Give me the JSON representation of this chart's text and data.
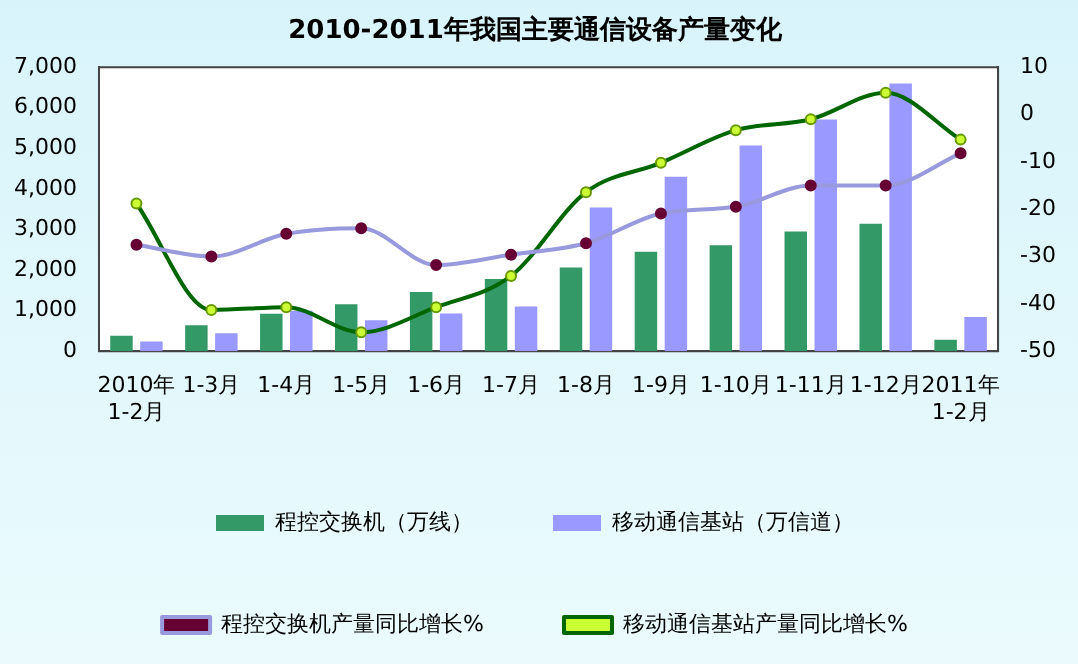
{
  "chart_data": {
    "type": "bar",
    "title": "2010-2011年我国主要通信设备产量变化",
    "categories": [
      "2010年\n1-2月",
      "1-3月",
      "1-4月",
      "1-5月",
      "1-6月",
      "1-7月",
      "1-8月",
      "1-9月",
      "1-10月",
      "1-11月",
      "1-12月",
      "2011年\n1-2月"
    ],
    "series": [
      {
        "name": "程控交换机（万线）",
        "color": "#339966",
        "values": [
          380,
          640,
          925,
          1160,
          1460,
          1780,
          2060,
          2450,
          2610,
          2950,
          3140,
          280
        ]
      },
      {
        "name": "移动通信基站（万信道）",
        "color": "#9999ff",
        "values": [
          240,
          440,
          1000,
          760,
          930,
          1100,
          3540,
          4300,
          5070,
          5710,
          6600,
          840
        ]
      },
      {
        "name": "程控交换机产量同比增长%",
        "type": "line",
        "axis": "y2",
        "color": "#9999dd",
        "values": [
          -27.5,
          -30,
          -25.2,
          -24,
          -31.8,
          -29.6,
          -27.2,
          -20.9,
          -19.5,
          -15,
          -15,
          -8.2
        ]
      },
      {
        "name": "移动通信基站产量同比增长%",
        "type": "line",
        "axis": "y2",
        "color": "#006600",
        "values": [
          -18.8,
          -41.3,
          -40.7,
          -46,
          -40.7,
          -34.1,
          -16.4,
          -10.2,
          -3.3,
          -1,
          4.6,
          -5.3
        ]
      }
    ],
    "ylim": [
      0,
      7000
    ],
    "yticks": [
      0,
      {
        "value": 1000,
        "label": "1,000"
      },
      {
        "value": 2000,
        "label": "2,000"
      },
      {
        "value": 3000,
        "label": "3,000"
      },
      {
        "value": 4000,
        "label": "4,000"
      },
      {
        "value": 5000,
        "label": "5,000"
      },
      {
        "value": 6000,
        "label": "6,000"
      },
      {
        "value": 7000,
        "label": "7,000"
      }
    ],
    "y2lim": [
      -50,
      10
    ],
    "y2ticks": [
      -50,
      -40,
      -30,
      -20,
      -10,
      0,
      10
    ],
    "grid": false,
    "legend": "bottom",
    "marker": "circle"
  }
}
